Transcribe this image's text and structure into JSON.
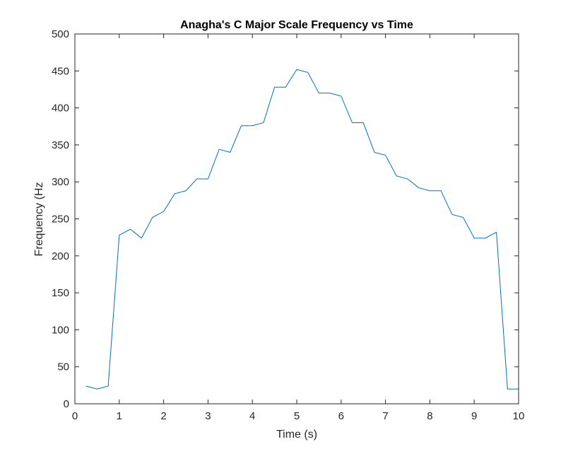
{
  "chart_data": {
    "type": "line",
    "title": "Anagha's C Major Scale Frequency vs Time",
    "xlabel": "Time (s)",
    "ylabel": "Frequency (Hz",
    "xlim": [
      0,
      10
    ],
    "ylim": [
      0,
      500
    ],
    "xticks": [
      0,
      1,
      2,
      3,
      4,
      5,
      6,
      7,
      8,
      9,
      10
    ],
    "yticks": [
      0,
      50,
      100,
      150,
      200,
      250,
      300,
      350,
      400,
      450,
      500
    ],
    "grid": false,
    "series": [
      {
        "color": "#0072BD",
        "x": [
          0.25,
          0.5,
          0.75,
          1.0,
          1.25,
          1.5,
          1.75,
          2.0,
          2.25,
          2.5,
          2.75,
          3.0,
          3.25,
          3.5,
          3.75,
          4.0,
          4.25,
          4.5,
          4.75,
          5.0,
          5.25,
          5.5,
          5.75,
          6.0,
          6.25,
          6.5,
          6.75,
          7.0,
          7.25,
          7.5,
          7.75,
          8.0,
          8.25,
          8.5,
          8.75,
          9.0,
          9.25,
          9.5,
          9.75,
          10.0
        ],
        "y": [
          24,
          20,
          24,
          228,
          236,
          224,
          252,
          260,
          284,
          288,
          304,
          304,
          344,
          340,
          376,
          376,
          380,
          428,
          428,
          452,
          448,
          420,
          420,
          416,
          380,
          380,
          340,
          336,
          308,
          304,
          292,
          288,
          288,
          256,
          252,
          224,
          224,
          232,
          20,
          20
        ]
      }
    ]
  }
}
